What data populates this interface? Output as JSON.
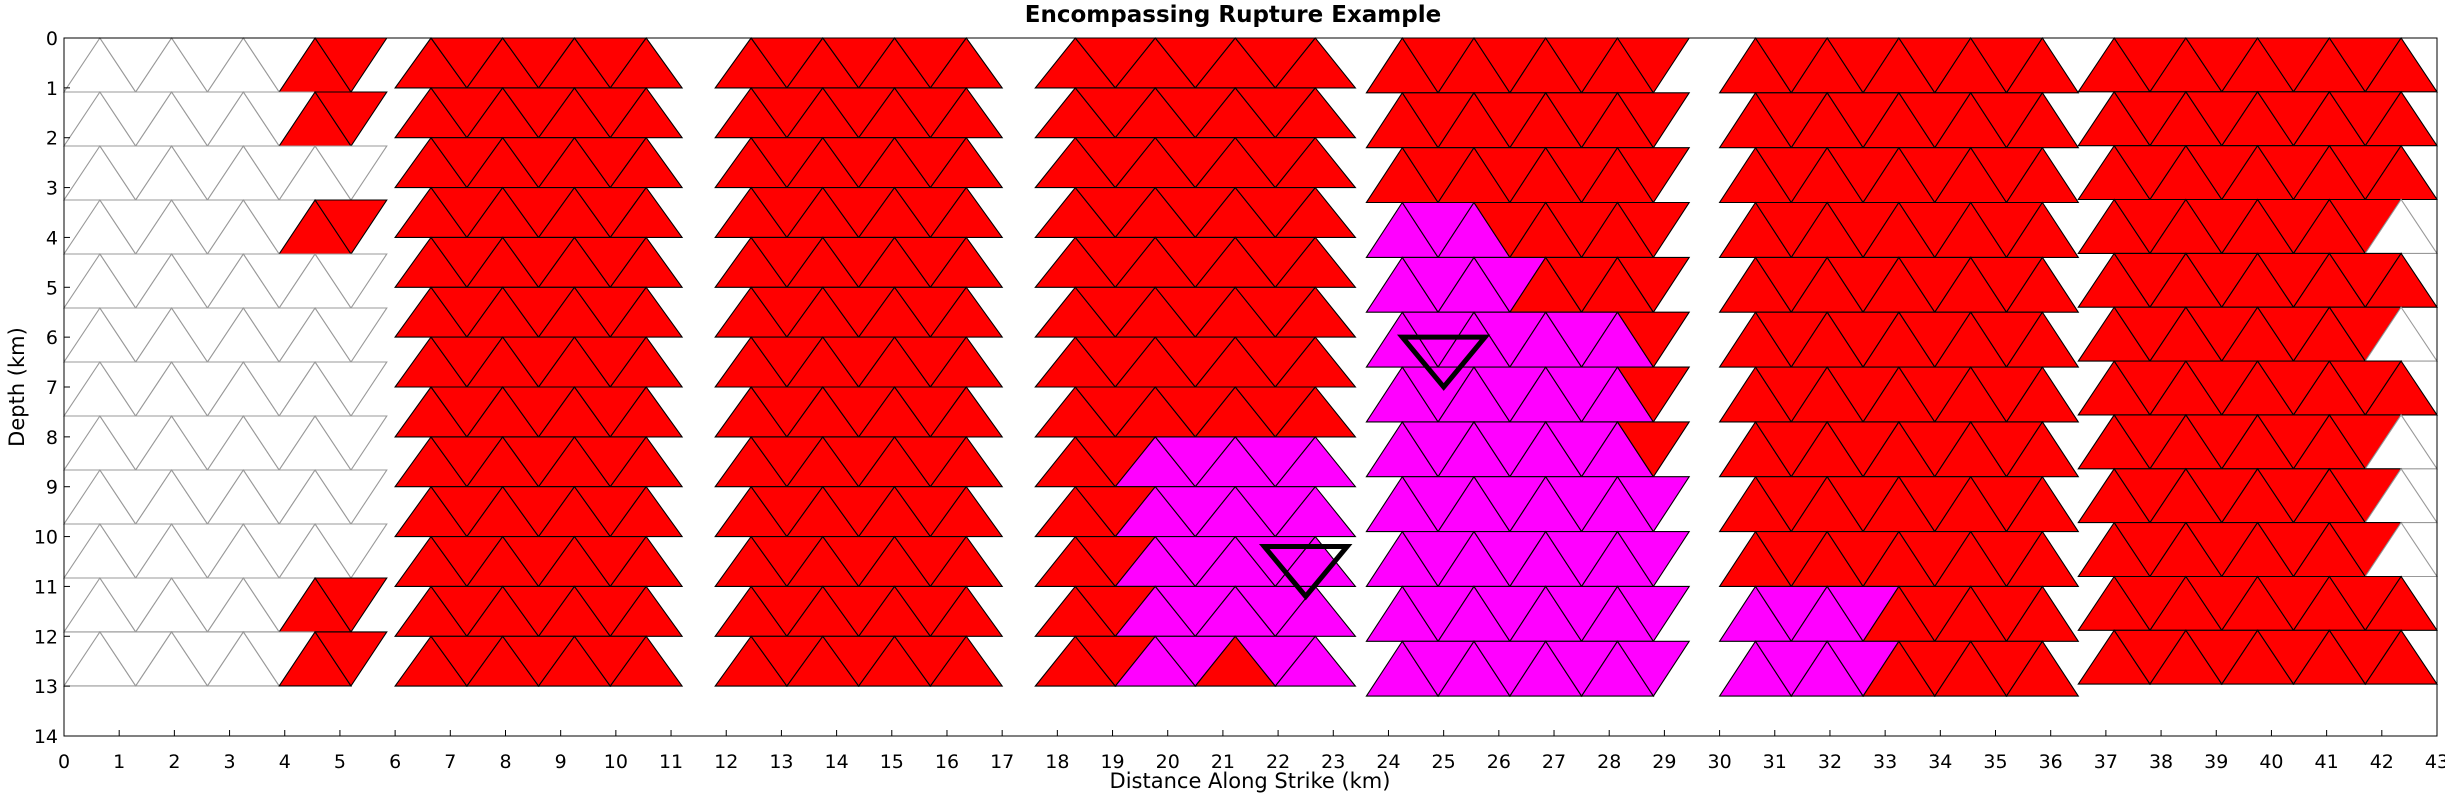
{
  "chart_data": {
    "type": "mesh",
    "title": "Encompassing Rupture Example",
    "xlabel": "Distance Along Strike (km)",
    "ylabel": "Depth (km)",
    "xlim": [
      0,
      43
    ],
    "ylim": [
      14,
      0
    ],
    "x_ticks": [
      "0",
      "1",
      "2",
      "3",
      "4",
      "5",
      "6",
      "7",
      "8",
      "9",
      "10",
      "11",
      "12",
      "13",
      "14",
      "15",
      "16",
      "17",
      "18",
      "19",
      "20",
      "21",
      "22",
      "23",
      "24",
      "25",
      "26",
      "27",
      "28",
      "29",
      "30",
      "31",
      "32",
      "33",
      "34",
      "35",
      "36",
      "37",
      "38",
      "39",
      "40",
      "41",
      "42",
      "43"
    ],
    "y_ticks": [
      "0",
      "1",
      "2",
      "3",
      "4",
      "5",
      "6",
      "7",
      "8",
      "9",
      "10",
      "11",
      "12",
      "13",
      "14"
    ],
    "colors": {
      "included": "#ff0000",
      "hypocenter_region": "#ff00ff",
      "unused": "#ffffff",
      "unused_edge": "#999999",
      "edge": "#000000"
    },
    "sections": [
      {
        "x_start": 0.0,
        "x_end": 6.2,
        "depth_top": 0.0,
        "depth_bottom": 13.0,
        "tri_width": 1.3,
        "row_height": 1.083
      },
      {
        "x_start": 6.0,
        "x_end": 11.8,
        "depth_top": 0.0,
        "depth_bottom": 13.0,
        "tri_width": 1.3,
        "row_height": 1.0
      },
      {
        "x_start": 11.8,
        "x_end": 17.6,
        "depth_top": 0.0,
        "depth_bottom": 13.0,
        "tri_width": 1.3,
        "row_height": 1.0
      },
      {
        "x_start": 17.6,
        "x_end": 23.6,
        "depth_top": 0.0,
        "depth_bottom": 13.0,
        "tri_width": 1.45,
        "row_height": 1.0
      },
      {
        "x_start": 23.6,
        "x_end": 30.0,
        "depth_top": 0.0,
        "depth_bottom": 13.2,
        "tri_width": 1.3,
        "row_height": 1.1
      },
      {
        "x_start": 30.0,
        "x_end": 36.5,
        "depth_top": 0.0,
        "depth_bottom": 13.2,
        "tri_width": 1.3,
        "row_height": 1.1
      },
      {
        "x_start": 36.5,
        "x_end": 43.0,
        "depth_top": 0.0,
        "depth_bottom": 13.0,
        "tri_width": 1.3,
        "row_height": 1.08
      }
    ],
    "hypocenter_markers": [
      {
        "x": 25.0,
        "depth": 6.0
      },
      {
        "x": 22.5,
        "depth": 10.2
      }
    ]
  }
}
